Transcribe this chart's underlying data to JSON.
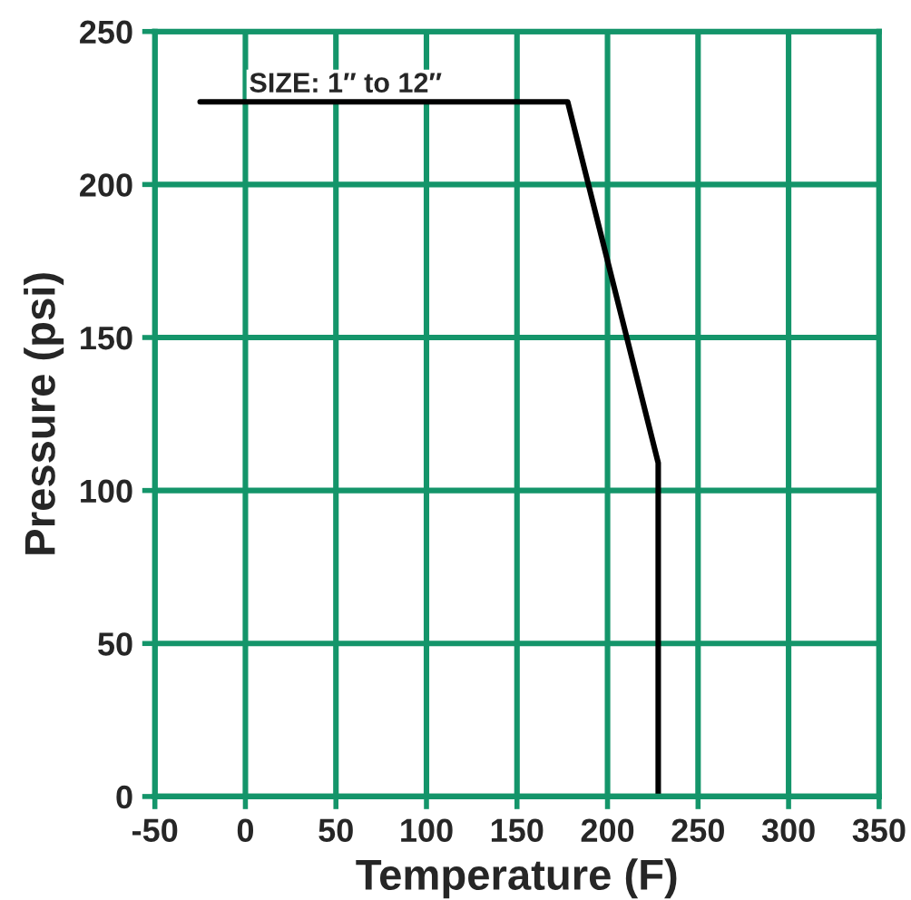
{
  "chart_data": {
    "type": "line",
    "xlabel": "Temperature (F)",
    "ylabel": "Pressure (psi)",
    "annotations": [
      "SIZE: 1″ to 12″"
    ],
    "series": [
      {
        "color": "#000000",
        "x": [
          -25,
          178,
          228,
          228
        ],
        "values": [
          227,
          227,
          109,
          0
        ]
      }
    ],
    "xlim": [
      -50,
      350
    ],
    "xticks": [
      -50,
      0,
      50,
      100,
      150,
      200,
      250,
      300,
      350
    ],
    "ylim": [
      0,
      250
    ],
    "yticks": [
      0,
      50,
      100,
      150,
      200,
      250
    ],
    "grid": true,
    "marker": "none",
    "line_style": "solid"
  }
}
